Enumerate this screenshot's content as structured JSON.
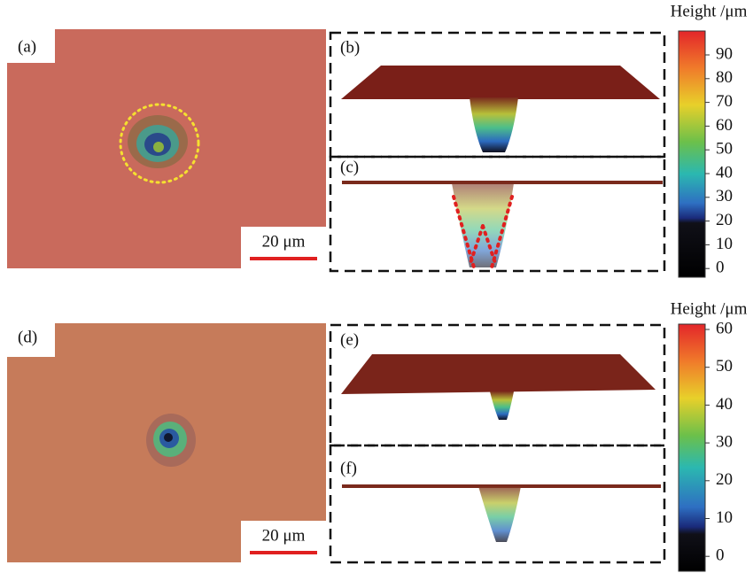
{
  "panels": [
    {
      "label": "(a)",
      "scale_bar": "20 μm"
    },
    {
      "label": "(b)"
    },
    {
      "label": "(c)"
    },
    {
      "label": "(d)",
      "scale_bar": "20 μm"
    },
    {
      "label": "(e)"
    },
    {
      "label": "(f)"
    }
  ],
  "colorbars": [
    {
      "title": "Height /μm",
      "ticks": [
        90,
        80,
        70,
        60,
        50,
        40,
        30,
        20,
        10,
        0
      ]
    },
    {
      "title": "Height /μm",
      "ticks": [
        60,
        50,
        40,
        30,
        20,
        10,
        0
      ]
    }
  ]
}
